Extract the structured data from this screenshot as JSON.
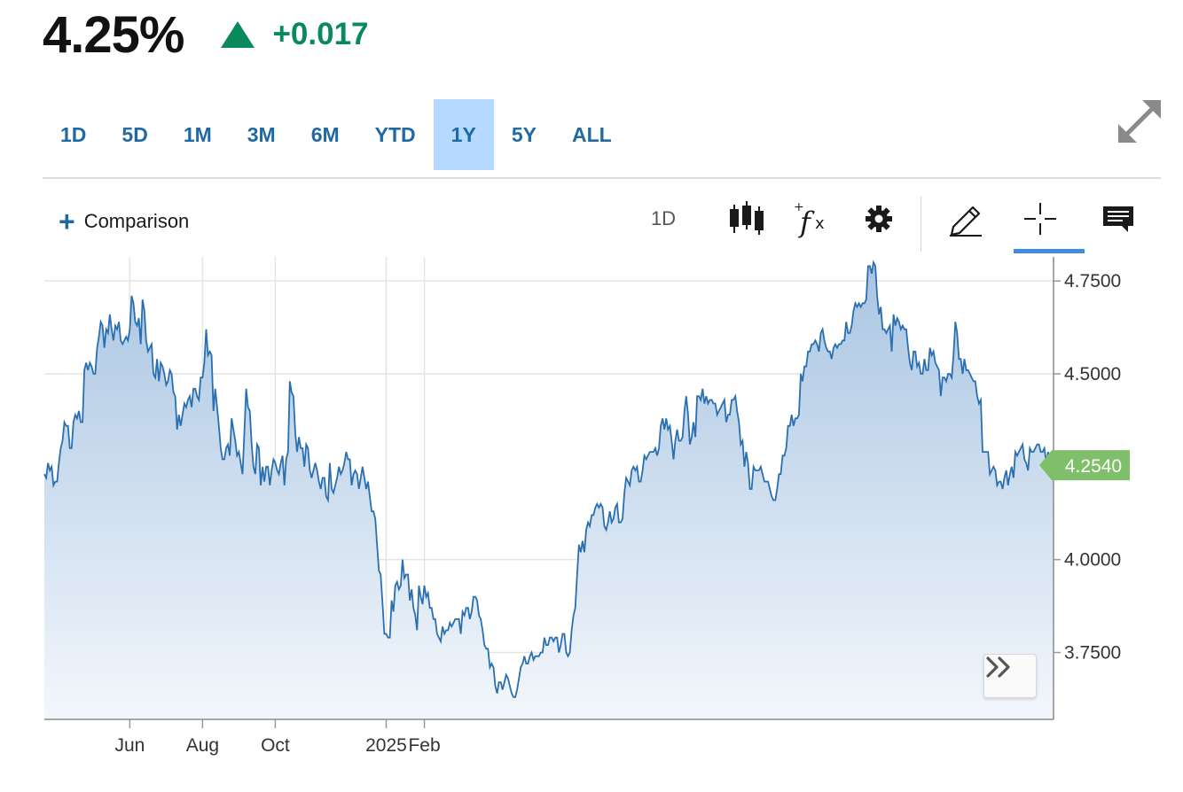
{
  "quote": {
    "price": "4.25%",
    "change": "+0.017",
    "direction_icon": "triangle-up-icon",
    "up_color": "#0a8a5a"
  },
  "ranges": [
    {
      "label": "1D",
      "active": false
    },
    {
      "label": "5D",
      "active": false
    },
    {
      "label": "1M",
      "active": false
    },
    {
      "label": "3M",
      "active": false
    },
    {
      "label": "6M",
      "active": false
    },
    {
      "label": "YTD",
      "active": false
    },
    {
      "label": "1Y",
      "active": true
    },
    {
      "label": "5Y",
      "active": false
    },
    {
      "label": "ALL",
      "active": false
    }
  ],
  "toolbar": {
    "comparison_label": "Comparison",
    "interval_label": "1D",
    "icons": [
      "candlestick-icon",
      "function-icon",
      "gear-icon",
      "pencil-icon",
      "crosshair-icon",
      "comment-icon"
    ],
    "active_tool": "crosshair-icon"
  },
  "chart_data": {
    "type": "area",
    "x_labels": [
      "Jun",
      "Aug",
      "Oct",
      "2025",
      "Feb"
    ],
    "y_ticks": [
      "4.7500",
      "4.5000",
      "4.0000",
      "3.7500"
    ],
    "ylim": [
      3.57,
      4.81
    ],
    "grid": true,
    "last_value_label": "4.2540",
    "last_value": 4.254,
    "line_color": "#2a6fb0",
    "fill_top_color": "#a9c5e2",
    "fill_bottom_color": "#f3f7fc",
    "last_value_badge_color": "#7fbf6a",
    "x_label_sessions": [
      47,
      87,
      127,
      188,
      209
    ],
    "series": [
      {
        "values": [
          4.23,
          4.22,
          4.26,
          4.24,
          4.25,
          4.2,
          4.21,
          4.21,
          4.26,
          4.3,
          4.32,
          4.37,
          4.36,
          4.36,
          4.3,
          4.3,
          4.37,
          4.39,
          4.38,
          4.4,
          4.37,
          4.37,
          4.51,
          4.53,
          4.51,
          4.53,
          4.52,
          4.5,
          4.5,
          4.57,
          4.6,
          4.64,
          4.63,
          4.57,
          4.62,
          4.61,
          4.66,
          4.62,
          4.59,
          4.63,
          4.62,
          4.64,
          4.59,
          4.58,
          4.59,
          4.6,
          4.59,
          4.62,
          4.71,
          4.69,
          4.64,
          4.63,
          4.65,
          4.58,
          4.7,
          4.67,
          4.59,
          4.56,
          4.57,
          4.58,
          4.5,
          4.49,
          4.54,
          4.48,
          4.53,
          4.52,
          4.5,
          4.47,
          4.48,
          4.51,
          4.5,
          4.45,
          4.44,
          4.35,
          4.39,
          4.36,
          4.39,
          4.42,
          4.41,
          4.43,
          4.44,
          4.41,
          4.46,
          4.46,
          4.44,
          4.43,
          4.49,
          4.49,
          4.53,
          4.62,
          4.55,
          4.56,
          4.55,
          4.4,
          4.46,
          4.41,
          4.36,
          4.3,
          4.27,
          4.27,
          4.3,
          4.31,
          4.28,
          4.38,
          4.35,
          4.32,
          4.28,
          4.29,
          4.26,
          4.23,
          4.34,
          4.46,
          4.41,
          4.4,
          4.31,
          4.25,
          4.23,
          4.31,
          4.3,
          4.2,
          4.25,
          4.21,
          4.25,
          4.25,
          4.2,
          4.24,
          4.27,
          4.26,
          4.24,
          4.23,
          4.26,
          4.28,
          4.2,
          4.27,
          4.29,
          4.48,
          4.45,
          4.44,
          4.34,
          4.29,
          4.33,
          4.3,
          4.3,
          4.25,
          4.31,
          4.3,
          4.24,
          4.22,
          4.24,
          4.26,
          4.24,
          4.21,
          4.19,
          4.22,
          4.22,
          4.17,
          4.16,
          4.26,
          4.19,
          4.18,
          4.2,
          4.22,
          4.25,
          4.23,
          4.24,
          4.26,
          4.29,
          4.27,
          4.27,
          4.2,
          4.23,
          4.24,
          4.23,
          4.19,
          4.22,
          4.25,
          4.22,
          4.19,
          4.21,
          4.17,
          4.13,
          4.13,
          4.11,
          4.04,
          3.97,
          3.96,
          3.88,
          3.8,
          3.8,
          3.79,
          3.79,
          3.89,
          3.86,
          3.93,
          3.94,
          3.92,
          3.93,
          4.0,
          3.95,
          3.96,
          3.96,
          3.89,
          3.92,
          3.87,
          3.85,
          3.81,
          3.93,
          3.9,
          3.88,
          3.93,
          3.9,
          3.91,
          3.87,
          3.87,
          3.84,
          3.84,
          3.8,
          3.79,
          3.78,
          3.82,
          3.8,
          3.81,
          3.81,
          3.83,
          3.82,
          3.83,
          3.84,
          3.84,
          3.84,
          3.8,
          3.86,
          3.85,
          3.87,
          3.87,
          3.84,
          3.86,
          3.9,
          3.9,
          3.89,
          3.85,
          3.84,
          3.81,
          3.77,
          3.76,
          3.76,
          3.71,
          3.72,
          3.71,
          3.66,
          3.64,
          3.67,
          3.67,
          3.65,
          3.67,
          3.69,
          3.68,
          3.66,
          3.64,
          3.63,
          3.63,
          3.65,
          3.68,
          3.71,
          3.72,
          3.74,
          3.72,
          3.72,
          3.74,
          3.75,
          3.73,
          3.74,
          3.74,
          3.74,
          3.75,
          3.75,
          3.79,
          3.77,
          3.77,
          3.79,
          3.79,
          3.78,
          3.79,
          3.79,
          3.75,
          3.77,
          3.8,
          3.8,
          3.75,
          3.74,
          3.75,
          3.81,
          3.85,
          3.87,
          3.96,
          4.04,
          4.02,
          4.05,
          4.02,
          4.08,
          4.1,
          4.09,
          4.12,
          4.12,
          4.14,
          4.15,
          4.14,
          4.15,
          4.14,
          4.09,
          4.08,
          4.1,
          4.13,
          4.1,
          4.11,
          4.14,
          4.15,
          4.1,
          4.1,
          4.11,
          4.18,
          4.22,
          4.21,
          4.2,
          4.24,
          4.25,
          4.24,
          4.25,
          4.21,
          4.21,
          4.24,
          4.28,
          4.27,
          4.28,
          4.29,
          4.29,
          4.29,
          4.3,
          4.28,
          4.3,
          4.36,
          4.38,
          4.35,
          4.38,
          4.35,
          4.36,
          4.32,
          4.27,
          4.32,
          4.35,
          4.32,
          4.32,
          4.33,
          4.4,
          4.44,
          4.39,
          4.31,
          4.33,
          4.37,
          4.33,
          4.44,
          4.44,
          4.43,
          4.46,
          4.42,
          4.44,
          4.42,
          4.43,
          4.43,
          4.42,
          4.42,
          4.39,
          4.4,
          4.41,
          4.42,
          4.43,
          4.37,
          4.39,
          4.39,
          4.43,
          4.43,
          4.44,
          4.4,
          4.37,
          4.31,
          4.32,
          4.25,
          4.29,
          4.26,
          4.19,
          4.19,
          4.25,
          4.24,
          4.24,
          4.24,
          4.25,
          4.23,
          4.21,
          4.21,
          4.21,
          4.19,
          4.17,
          4.16,
          4.16,
          4.19,
          4.23,
          4.23,
          4.28,
          4.28,
          4.3,
          4.36,
          4.36,
          4.39,
          4.36,
          4.38,
          4.38,
          4.39,
          4.5,
          4.48,
          4.52,
          4.52,
          4.56,
          4.56,
          4.58,
          4.58,
          4.59,
          4.58,
          4.56,
          4.61,
          4.62,
          4.59,
          4.57,
          4.56,
          4.56,
          4.54,
          4.57,
          4.58,
          4.57,
          4.58,
          4.58,
          4.59,
          4.59,
          4.64,
          4.61,
          4.61,
          4.63,
          4.67,
          4.69,
          4.68,
          4.69,
          4.68,
          4.69,
          4.69,
          4.7,
          4.79,
          4.79,
          4.77,
          4.8,
          4.79,
          4.71,
          4.66,
          4.68,
          4.62,
          4.62,
          4.61,
          4.62,
          4.63,
          4.56,
          4.66,
          4.63,
          4.65,
          4.64,
          4.62,
          4.63,
          4.62,
          4.62,
          4.57,
          4.53,
          4.51,
          4.56,
          4.56,
          4.52,
          4.53,
          4.5,
          4.5,
          4.54,
          4.51,
          4.51,
          4.57,
          4.55,
          4.56,
          4.53,
          4.52,
          4.51,
          4.44,
          4.49,
          4.49,
          4.48,
          4.5,
          4.5,
          4.49,
          4.55,
          4.64,
          4.61,
          4.54,
          4.54,
          4.5,
          4.54,
          4.51,
          4.51,
          4.5,
          4.49,
          4.48,
          4.48,
          4.44,
          4.42,
          4.43,
          4.29,
          4.29,
          4.29,
          4.29,
          4.23,
          4.24,
          4.25,
          4.24,
          4.2,
          4.21,
          4.21,
          4.19,
          4.22,
          4.24,
          4.2,
          4.23,
          4.25,
          4.22,
          4.29,
          4.28,
          4.29,
          4.3,
          4.31,
          4.27,
          4.26,
          4.24,
          4.3,
          4.29,
          4.29,
          4.3,
          4.31,
          4.31,
          4.29,
          4.29,
          4.3,
          4.26,
          4.29,
          4.27,
          4.26,
          4.25
        ]
      }
    ]
  }
}
